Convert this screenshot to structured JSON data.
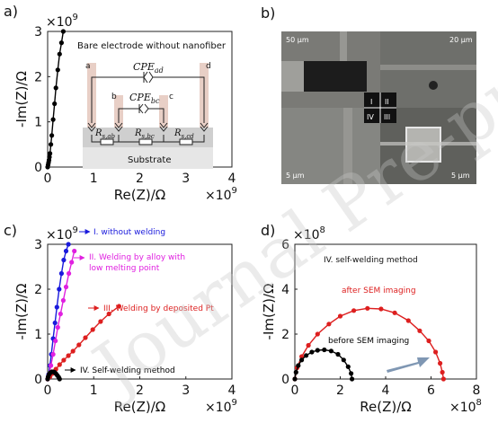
{
  "watermark": "Journal Pre-proof",
  "panels": {
    "a": {
      "label": "a)"
    },
    "b": {
      "label": "b)",
      "scalebars": [
        "50 μm",
        "20 μm",
        "5 μm",
        "5 μm"
      ],
      "quadrants": [
        "I",
        "II",
        "IV",
        "III"
      ]
    },
    "c": {
      "label": "c)"
    },
    "d": {
      "label": "d)"
    }
  },
  "circuit": {
    "title": "Bare electrode without nanofiber",
    "cpe_ad": "CPE",
    "cpe_ad_sub": "ad",
    "cpe_bc": "CPE",
    "cpe_bc_sub": "bc",
    "r_ab": "R",
    "r_ab_sub": "s,ab",
    "r_bc": "R",
    "r_bc_sub": "s,bc",
    "r_cd": "R",
    "r_cd_sub": "s,cd",
    "substrate": "Substrate",
    "terminals": [
      "a",
      "b",
      "c",
      "d"
    ]
  },
  "chart_data": [
    {
      "panel": "a",
      "type": "line",
      "xlabel": "Re(Z)/Ω",
      "ylabel": "-Im(Z)/Ω",
      "x_multiplier": "×10",
      "x_exp": "9",
      "y_multiplier": "×10",
      "y_exp": "9",
      "xlim": [
        0,
        4
      ],
      "ylim": [
        0,
        3
      ],
      "xticks": [
        "0",
        "1",
        "2",
        "3",
        "4"
      ],
      "yticks": [
        "0",
        "1",
        "2",
        "3"
      ],
      "series": [
        {
          "color": "#000000",
          "x": [
            0.0,
            0.01,
            0.02,
            0.03,
            0.04,
            0.05,
            0.07,
            0.09,
            0.12,
            0.15,
            0.18,
            0.22,
            0.26,
            0.3,
            0.34
          ],
          "y": [
            0.0,
            0.05,
            0.1,
            0.15,
            0.22,
            0.3,
            0.5,
            0.7,
            1.05,
            1.4,
            1.75,
            2.15,
            2.5,
            2.75,
            3.0
          ]
        }
      ]
    },
    {
      "panel": "c",
      "type": "line",
      "xlabel": "Re(Z)/Ω",
      "ylabel": "-Im(Z)/Ω",
      "x_multiplier": "×10",
      "x_exp": "9",
      "y_multiplier": "×10",
      "y_exp": "9",
      "xlim": [
        0,
        4
      ],
      "ylim": [
        0,
        3
      ],
      "xticks": [
        "0",
        "1",
        "2",
        "3",
        "4"
      ],
      "yticks": [
        "0",
        "1",
        "2",
        "3"
      ],
      "series": [
        {
          "name": "I. without welding",
          "color": "#1a1adc",
          "x": [
            0.0,
            0.02,
            0.05,
            0.08,
            0.12,
            0.16,
            0.2,
            0.25,
            0.3,
            0.35,
            0.4,
            0.45
          ],
          "y": [
            0.0,
            0.1,
            0.3,
            0.55,
            0.9,
            1.25,
            1.6,
            2.0,
            2.35,
            2.65,
            2.85,
            3.0
          ]
        },
        {
          "name": "II. Welding by alloy with low melting point",
          "color": "#e020e0",
          "x": [
            0.0,
            0.03,
            0.07,
            0.12,
            0.17,
            0.22,
            0.28,
            0.34,
            0.4,
            0.46,
            0.52,
            0.58
          ],
          "y": [
            0.0,
            0.1,
            0.3,
            0.55,
            0.85,
            1.15,
            1.45,
            1.75,
            2.05,
            2.35,
            2.6,
            2.85
          ]
        },
        {
          "name": "III. Welding by deposited Pt",
          "color": "#dd1f1f",
          "x": [
            0.0,
            0.05,
            0.1,
            0.18,
            0.26,
            0.35,
            0.45,
            0.55,
            0.68,
            0.82,
            0.98,
            1.15,
            1.33,
            1.55
          ],
          "y": [
            0.0,
            0.05,
            0.12,
            0.22,
            0.32,
            0.42,
            0.52,
            0.62,
            0.76,
            0.92,
            1.1,
            1.28,
            1.45,
            1.62
          ]
        },
        {
          "name": "IV. Self-welding method",
          "color": "#000000",
          "x": [
            0.0,
            0.01,
            0.03,
            0.06,
            0.09,
            0.12,
            0.15,
            0.18,
            0.21,
            0.24,
            0.26
          ],
          "y": [
            0.0,
            0.05,
            0.1,
            0.14,
            0.16,
            0.16,
            0.15,
            0.12,
            0.08,
            0.04,
            0.0
          ]
        }
      ]
    },
    {
      "panel": "d",
      "type": "line",
      "xlabel": "Re(Z)/Ω",
      "ylabel": "-Im(Z)/Ω",
      "x_multiplier": "×10",
      "x_exp": "8",
      "y_multiplier": "×10",
      "y_exp": "8",
      "xlim": [
        0,
        8
      ],
      "ylim": [
        0,
        6
      ],
      "xticks": [
        "0",
        "2",
        "4",
        "6",
        "8"
      ],
      "yticks": [
        "0",
        "2",
        "4",
        "6"
      ],
      "title": "IV. self-welding method",
      "series": [
        {
          "name": "after SEM imaging",
          "color": "#dd1f1f",
          "x": [
            0.0,
            0.1,
            0.3,
            0.6,
            1.0,
            1.5,
            2.0,
            2.6,
            3.2,
            3.8,
            4.4,
            5.0,
            5.5,
            5.9,
            6.2,
            6.4,
            6.5,
            6.55
          ],
          "y": [
            0.0,
            0.5,
            1.0,
            1.5,
            2.0,
            2.45,
            2.8,
            3.05,
            3.15,
            3.12,
            2.95,
            2.6,
            2.15,
            1.7,
            1.2,
            0.7,
            0.3,
            0.0
          ]
        },
        {
          "name": "before SEM imaging",
          "color": "#000000",
          "x": [
            0.0,
            0.05,
            0.15,
            0.3,
            0.5,
            0.75,
            1.0,
            1.3,
            1.6,
            1.9,
            2.15,
            2.35,
            2.48,
            2.52
          ],
          "y": [
            0.0,
            0.3,
            0.6,
            0.85,
            1.05,
            1.2,
            1.28,
            1.3,
            1.25,
            1.1,
            0.85,
            0.55,
            0.25,
            0.0
          ]
        }
      ]
    }
  ]
}
